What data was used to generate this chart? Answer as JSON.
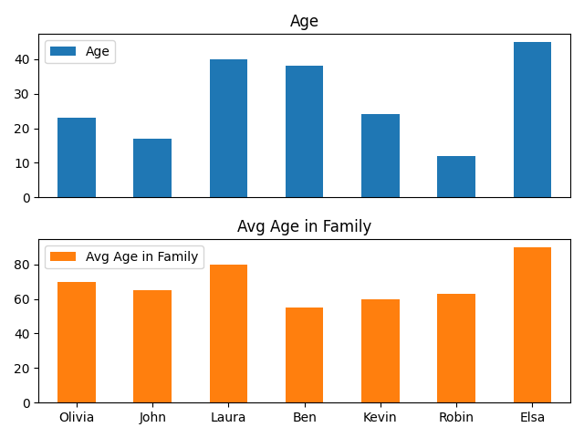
{
  "names": [
    "Olivia",
    "John",
    "Laura",
    "Ben",
    "Kevin",
    "Robin",
    "Elsa"
  ],
  "age": [
    23,
    17,
    40,
    38,
    24,
    12,
    45
  ],
  "avg_age_family": [
    70,
    65,
    80,
    55,
    60,
    63,
    90
  ],
  "age_color": "#1f77b4",
  "avg_color": "#ff7f0e",
  "title_age": "Age",
  "title_avg": "Avg Age in Family",
  "legend_age": "Age",
  "legend_avg": "Avg Age in Family"
}
